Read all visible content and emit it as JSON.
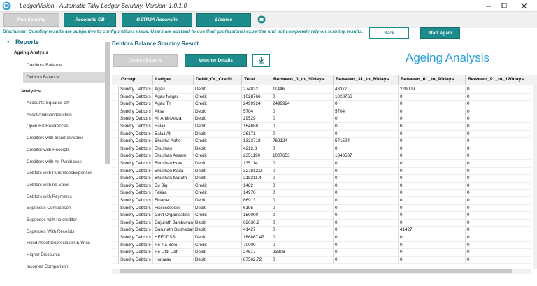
{
  "window": {
    "title": "LedgerVision - Automatic Tally Ledger Scrutiny.  Version: 1.0.1.0"
  },
  "toolbar": {
    "buttons": [
      "Run Scrutiny",
      "Reconcile OB",
      "GSTR2A Reconcile",
      "License"
    ]
  },
  "disclaimer": "Disclaimer: Scrutiny results are subjective to configurations made. Users are advised to use their professional expertise and not completely rely on scrutiny results.",
  "nav_buttons": {
    "back": "Back",
    "start_again": "Start Again"
  },
  "sidebar": {
    "title": "Reports",
    "groups": [
      {
        "label": "Ageing Analysis",
        "items": [
          "Creditors Balance",
          "Debtors Balance"
        ]
      },
      {
        "label": "Analytics",
        "items": [
          "Accounts Squared Off",
          "Asset Addition/Deletion",
          "Open Bill References",
          "Creditors with Incomes/Sales",
          "Creditor with Receipts",
          "Creditors with no Purchases",
          "Debtors with PurchasesExpenses",
          "Debtors with no Sales",
          "Debtors with Payments",
          "Expenses Comparison",
          "Expenses with no creditor",
          "Expenses With Receipts",
          "Fixed Asset Depreciation Entries",
          "Higher Discounts",
          "Incomes Comparison"
        ]
      }
    ]
  },
  "main": {
    "title": "Debtors Balance Scrutiny Result",
    "tabs": [
      "Debtors Balance",
      "Voucher Details"
    ],
    "heading": "Ageing Analysis"
  },
  "table": {
    "columns": [
      "Group",
      "Ledger",
      "Debit_Or_Credit",
      "Total",
      "Between_0_to_30days",
      "Between_31_to_60days",
      "Between_61_to_90days",
      "Between_91_to_120days"
    ],
    "rows": [
      [
        "Sundry Debtors",
        "Agau",
        "Debit",
        274832,
        11446,
        43377,
        220009,
        0
      ],
      [
        "Sundry Debtors",
        "Agau Nagar",
        "Credit",
        1028766,
        0,
        1028766,
        0,
        0
      ],
      [
        "Sundry Debtors",
        "Agau Tn",
        "Credit",
        2499924,
        2499924,
        0,
        0,
        0
      ],
      [
        "Sundry Debtors",
        "Aksa",
        "Debit",
        5704,
        0,
        5704,
        0,
        0
      ],
      [
        "Sundry Debtors",
        "Ali Amin Anza",
        "Debit",
        29529,
        0,
        0,
        0,
        0
      ],
      [
        "Sundry Debtors",
        "Balaji",
        "Debit",
        164688,
        0,
        0,
        0,
        0
      ],
      [
        "Sundry Debtors",
        "Balaji Ali",
        "Debit",
        26171,
        0,
        0,
        0,
        0
      ],
      [
        "Sundry Debtors",
        "Bhusha Aahe",
        "Credit",
        1333718,
        762124,
        571594,
        0,
        0
      ],
      [
        "Sundry Debtors",
        "Bhushan",
        "Debit",
        4212.8,
        0,
        0,
        0,
        0
      ],
      [
        "Sundry Debtors",
        "Bhushan Assam",
        "Credit",
        2351190,
        1007653,
        1343537,
        0,
        0
      ],
      [
        "Sundry Debtors",
        "Bhushan Hota",
        "Debit",
        135114,
        0,
        0,
        0,
        0
      ],
      [
        "Sundry Debtors",
        "Bhushan Kada",
        "Debit",
        327812.2,
        0,
        0,
        0,
        0
      ],
      [
        "Sundry Debtors",
        "Bhushan Marath",
        "Debit",
        218211.4,
        0,
        0,
        0,
        0
      ],
      [
        "Sundry Debtors",
        "Bu Big",
        "Credit",
        1482,
        0,
        0,
        0,
        0
      ],
      [
        "Sundry Debtors",
        "Fakira",
        "Credit",
        14970,
        0,
        0,
        0,
        0
      ],
      [
        "Sundry Debtors",
        "Finacle",
        "Debit",
        66913,
        0,
        0,
        0,
        0
      ],
      [
        "Sundry Debtors",
        "Fissccccooss",
        "Debit",
        6195,
        0,
        0,
        0,
        0
      ],
      [
        "Sundry Debtors",
        "Govt Organisation",
        "Credit",
        150000,
        0,
        0,
        0,
        0
      ],
      [
        "Sundry Debtors",
        "Gujurath Jambuvan",
        "Debit",
        62630.2,
        0,
        0,
        0,
        0
      ],
      [
        "Sundry Debtors",
        "Gurunath Subhedar",
        "Debit",
        41427,
        0,
        0,
        41427,
        0
      ],
      [
        "Sundry Debtors",
        "HFFDDSS",
        "Debit",
        166867.47,
        0,
        0,
        0,
        0
      ],
      [
        "Sundry Debtors",
        "He Na Bolo",
        "Credit",
        70000,
        0,
        0,
        0,
        0
      ],
      [
        "Sundry Debtors",
        "He Ufdi Udfi",
        "Debit",
        24517,
        23306,
        0,
        0,
        0
      ],
      [
        "Sundry Debtors",
        "Honarav",
        "Debit",
        87562.72,
        0,
        0,
        0,
        0
      ]
    ]
  }
}
